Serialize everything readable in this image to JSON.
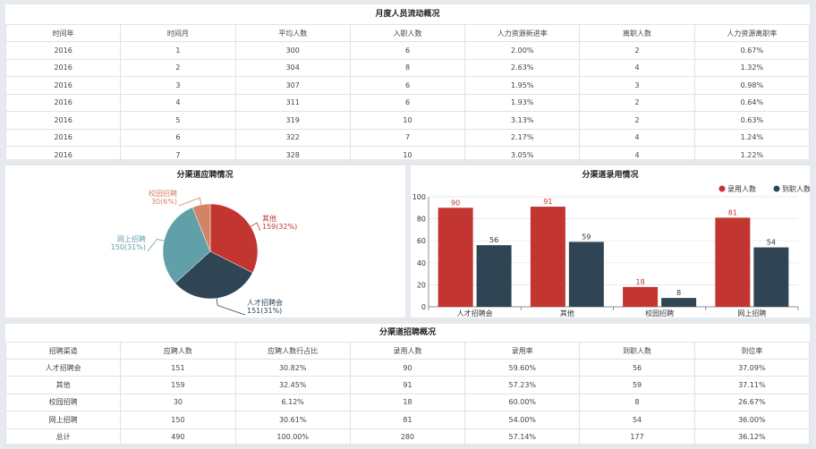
{
  "monthly": {
    "title": "月度人员流动概况",
    "headers": [
      "时间年",
      "时间月",
      "平均人数",
      "入职人数",
      "人力资源新进率",
      "离职人数",
      "人力资源离职率"
    ],
    "rows": [
      [
        "2016",
        "1",
        "300",
        "6",
        "2.00%",
        "2",
        "0.67%"
      ],
      [
        "2016",
        "2",
        "304",
        "8",
        "2.63%",
        "4",
        "1.32%"
      ],
      [
        "2016",
        "3",
        "307",
        "6",
        "1.95%",
        "3",
        "0.98%"
      ],
      [
        "2016",
        "4",
        "311",
        "6",
        "1.93%",
        "2",
        "0.64%"
      ],
      [
        "2016",
        "5",
        "319",
        "10",
        "3.13%",
        "2",
        "0.63%"
      ],
      [
        "2016",
        "6",
        "322",
        "7",
        "2.17%",
        "4",
        "1.24%"
      ],
      [
        "2016",
        "7",
        "328",
        "10",
        "3.05%",
        "4",
        "1.22%"
      ]
    ]
  },
  "channel": {
    "title": "分渠道招聘概况",
    "headers": [
      "招聘渠道",
      "应聘人数",
      "应聘人数行占比",
      "录用人数",
      "录用率",
      "到职人数",
      "到位率"
    ],
    "rows": [
      [
        "人才招聘会",
        "151",
        "30.82%",
        "90",
        "59.60%",
        "56",
        "37.09%"
      ],
      [
        "其他",
        "159",
        "32.45%",
        "91",
        "57.23%",
        "59",
        "37.11%"
      ],
      [
        "校园招聘",
        "30",
        "6.12%",
        "18",
        "60.00%",
        "8",
        "26.67%"
      ],
      [
        "网上招聘",
        "150",
        "30.61%",
        "81",
        "54.00%",
        "54",
        "36.00%"
      ],
      [
        "总计",
        "490",
        "100.00%",
        "280",
        "57.14%",
        "177",
        "36.12%"
      ]
    ]
  },
  "chart_data": [
    {
      "type": "pie",
      "title": "分渠道应聘情况",
      "slices": [
        {
          "label": "其他",
          "value": 159,
          "text": "159(32%)",
          "color": "#c23531"
        },
        {
          "label": "人才招聘会",
          "value": 151,
          "text": "151(31%)",
          "color": "#2f4554"
        },
        {
          "label": "网上招聘",
          "value": 150,
          "text": "150(31%)",
          "color": "#61a0a8"
        },
        {
          "label": "校园招聘",
          "value": 30,
          "text": "30(6%)",
          "color": "#d48265"
        }
      ]
    },
    {
      "type": "bar",
      "title": "分渠道录用情况",
      "categories": [
        "人才招聘会",
        "其他",
        "校园招聘",
        "网上招聘"
      ],
      "series": [
        {
          "name": "录用人数",
          "values": [
            90,
            91,
            18,
            81
          ],
          "color": "#c23531"
        },
        {
          "name": "到职人数",
          "values": [
            56,
            59,
            8,
            54
          ],
          "color": "#2f4554"
        }
      ],
      "ylim": [
        0,
        100
      ],
      "yticks": [
        0,
        20,
        40,
        60,
        80,
        100
      ],
      "legend": "top-right",
      "grid": true
    }
  ]
}
